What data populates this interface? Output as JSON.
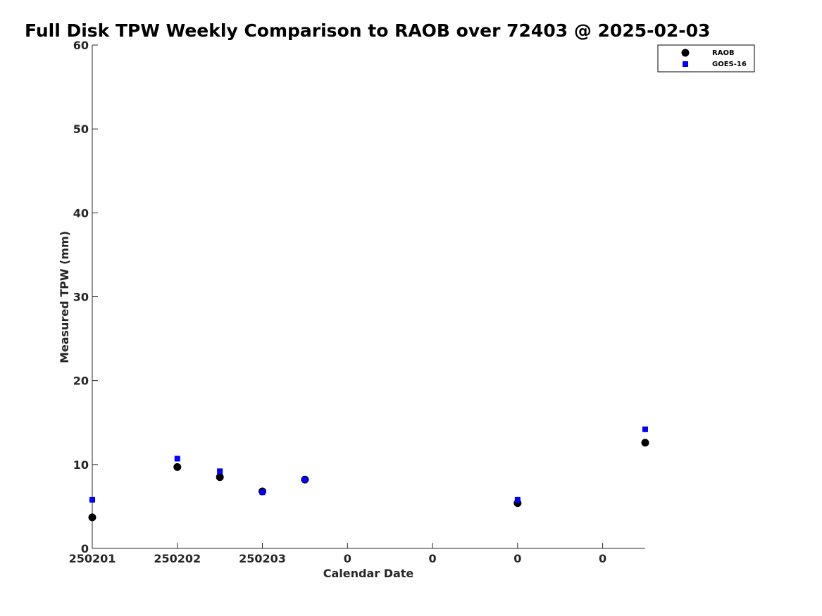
{
  "chart_data": {
    "type": "scatter",
    "title": "Full Disk TPW Weekly Comparison to RAOB over 72403 @ 2025-02-03",
    "xlabel": "Calendar Date",
    "ylabel": "Measured TPW (mm)",
    "ylim": [
      0,
      60
    ],
    "yticks": [
      0,
      10,
      20,
      30,
      40,
      50,
      60
    ],
    "xlim": [
      0,
      6.5
    ],
    "xticks": [
      0,
      1,
      2,
      3,
      4,
      5,
      6
    ],
    "xtick_labels": [
      "250201",
      "250202",
      "250203",
      "0",
      "0",
      "0",
      "0"
    ],
    "grid": false,
    "legend_position": "top-right",
    "series": [
      {
        "name": "RAOB",
        "marker": "circle",
        "color": "#000000",
        "x": [
          0,
          1,
          1.5,
          2,
          2.5,
          5,
          6.5
        ],
        "y": [
          3.7,
          9.7,
          8.5,
          6.8,
          8.2,
          5.4,
          12.6
        ]
      },
      {
        "name": "GOES-16",
        "marker": "square",
        "color": "#0000ff",
        "x": [
          0,
          1,
          1.5,
          2,
          2.5,
          5,
          6.5
        ],
        "y": [
          5.8,
          10.7,
          9.2,
          6.7,
          8.2,
          5.8,
          14.2
        ]
      }
    ]
  }
}
